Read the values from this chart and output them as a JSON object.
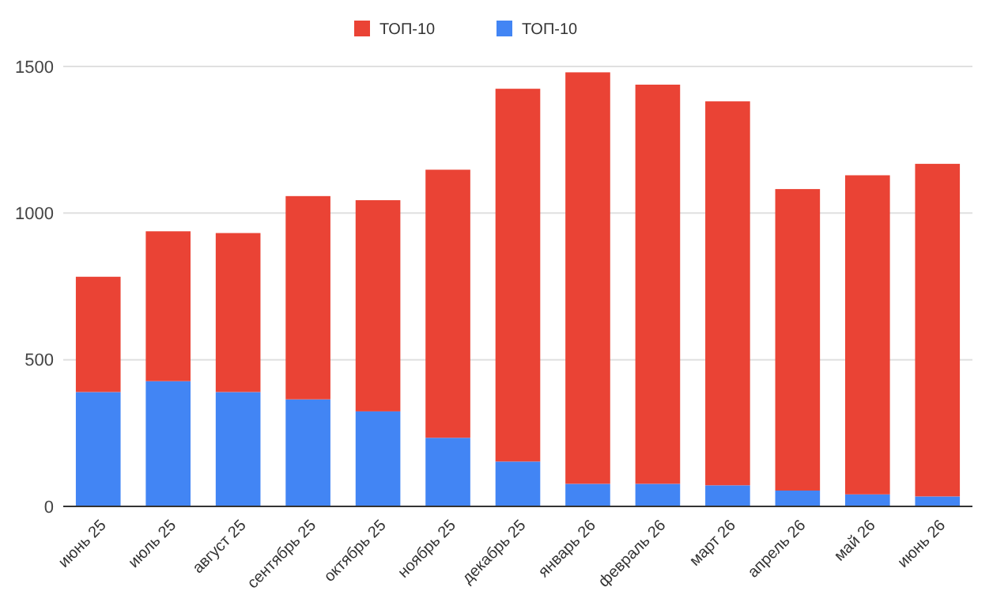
{
  "chart_data": {
    "type": "bar",
    "stacked": true,
    "categories": [
      "июнь 25",
      "июль 25",
      "август 25",
      "сентябрь 25",
      "октябрь 25",
      "ноябрь 25",
      "декабрь 25",
      "январь 26",
      "февраль 26",
      "март 26",
      "апрель 26",
      "май 26",
      "июнь 26"
    ],
    "series": [
      {
        "name": "ТОП-10",
        "color": "#4285f4",
        "values": [
          390,
          427,
          390,
          365,
          324,
          234,
          153,
          77,
          77,
          72,
          54,
          41,
          34
        ]
      },
      {
        "name": "ТОП-10",
        "color": "#ea4335",
        "values": [
          393,
          511,
          542,
          693,
          720,
          914,
          1271,
          1403,
          1361,
          1309,
          1028,
          1088,
          1134
        ]
      }
    ],
    "ylim": [
      0,
      1500
    ],
    "yticks": [
      0,
      500,
      1000,
      1500
    ],
    "grid": "y",
    "legend": "top"
  }
}
